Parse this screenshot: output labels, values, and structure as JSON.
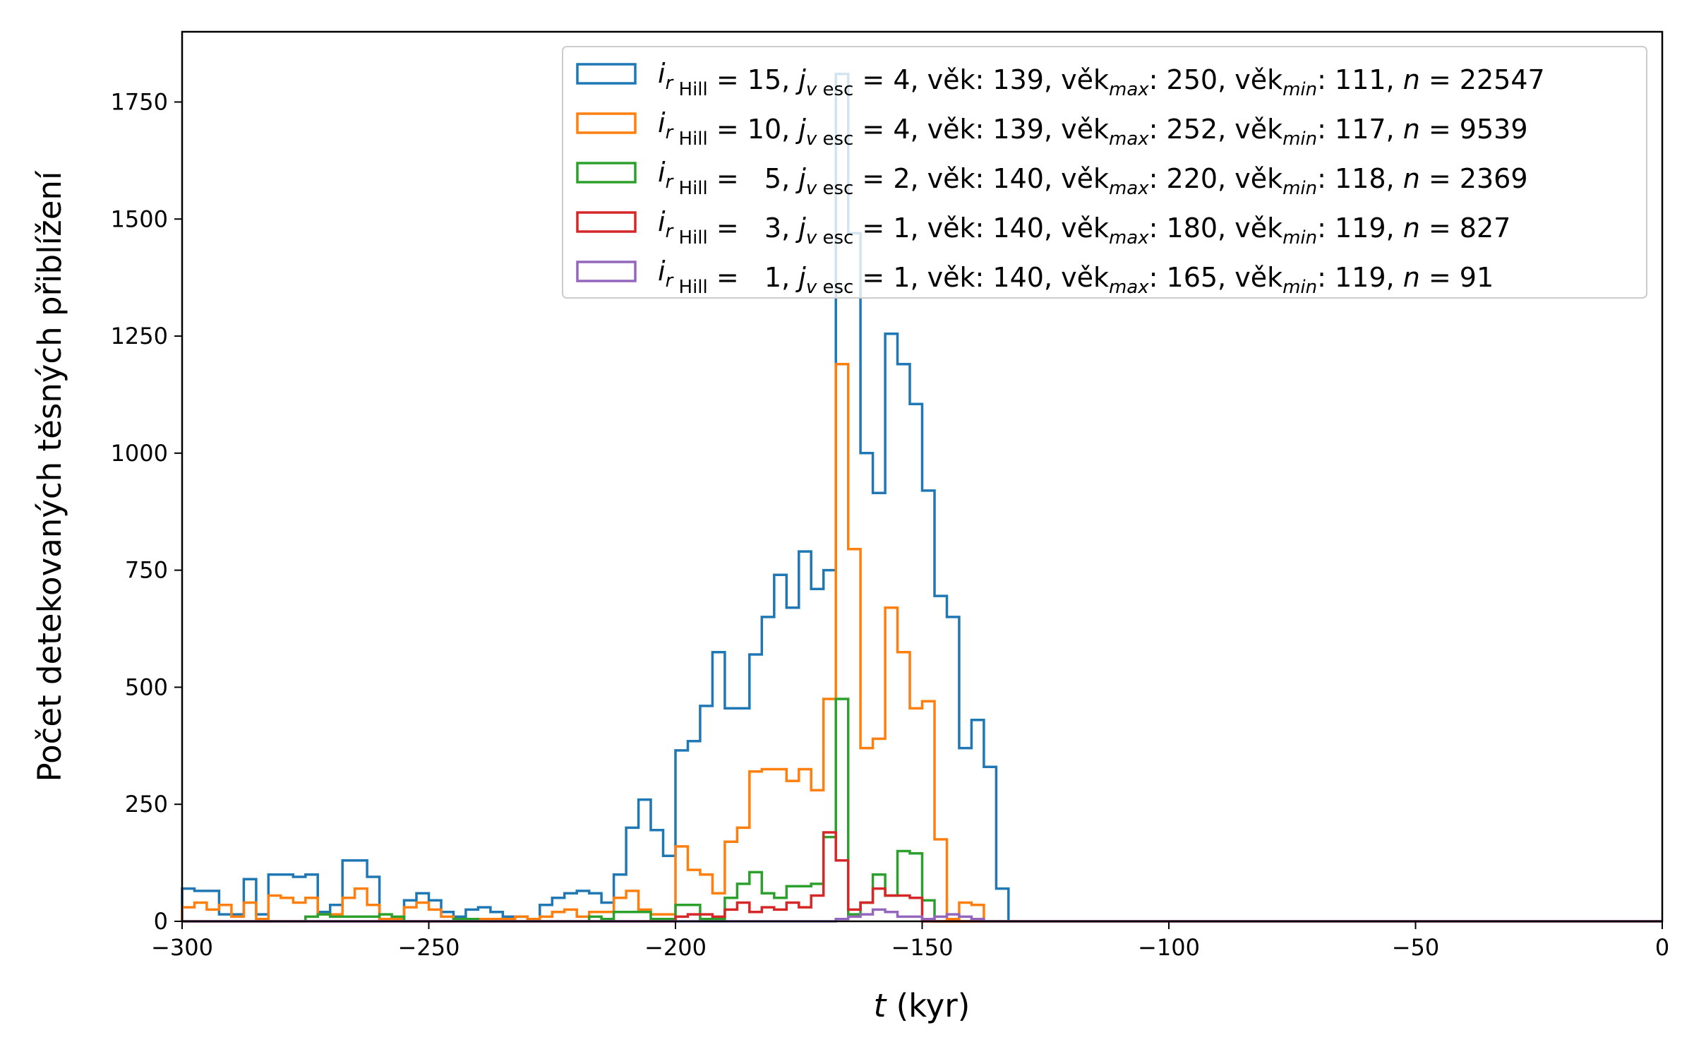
{
  "chart_data": {
    "type": "histogram",
    "xlabel_var": "t",
    "xlabel_unit": " (kyr)",
    "ylabel": "Počet detekovaných těsných přiblížení",
    "xlim": [
      -300,
      0
    ],
    "ylim": [
      0,
      1900
    ],
    "xticks": [
      -300,
      -250,
      -200,
      -150,
      -100,
      -50,
      0
    ],
    "xtick_labels": [
      "−300",
      "−250",
      "−200",
      "−150",
      "−100",
      "−50",
      "0"
    ],
    "yticks": [
      0,
      250,
      500,
      750,
      1000,
      1250,
      1500,
      1750
    ],
    "ytick_labels": [
      "0",
      "250",
      "500",
      "750",
      "1000",
      "1250",
      "1500",
      "1750"
    ],
    "bin_start": -300,
    "bin_width": 2.5,
    "legend_position": "upper right",
    "series": [
      {
        "name": "i_rHill = 15, j_vesc = 4, věk: 139, věk_max: 250, věk_min: 111, n = 22547",
        "legend": {
          "i": "15",
          "j": "4",
          "vek": "139",
          "vek_max": "250",
          "vek_min": "111",
          "n": "22547"
        },
        "color": "#1f77b4",
        "values": [
          70,
          65,
          65,
          15,
          15,
          90,
          15,
          100,
          100,
          95,
          100,
          20,
          35,
          130,
          130,
          95,
          5,
          5,
          45,
          60,
          45,
          20,
          10,
          25,
          30,
          20,
          10,
          10,
          5,
          35,
          50,
          60,
          65,
          60,
          40,
          100,
          200,
          260,
          195,
          140,
          365,
          385,
          460,
          575,
          455,
          455,
          570,
          650,
          740,
          670,
          790,
          710,
          750,
          1810,
          1470,
          1000,
          915,
          1255,
          1190,
          1105,
          920,
          695,
          650,
          370,
          430,
          330,
          70
        ]
      },
      {
        "name": "i_rHill = 10, j_vesc = 4, věk: 139, věk_max: 252, věk_min: 117, n = 9539",
        "legend": {
          "i": "10",
          "j": "4",
          "vek": "139",
          "vek_max": "252",
          "vek_min": "117",
          "n": "9539"
        },
        "color": "#ff7f0e",
        "values": [
          30,
          40,
          25,
          35,
          10,
          40,
          5,
          55,
          50,
          40,
          50,
          15,
          15,
          50,
          70,
          35,
          5,
          5,
          30,
          40,
          25,
          10,
          5,
          5,
          5,
          5,
          5,
          10,
          5,
          10,
          20,
          25,
          10,
          20,
          20,
          50,
          65,
          25,
          15,
          15,
          160,
          110,
          100,
          60,
          170,
          200,
          320,
          325,
          325,
          300,
          325,
          280,
          475,
          1190,
          795,
          370,
          390,
          670,
          575,
          455,
          470,
          175,
          5,
          40,
          35
        ]
      },
      {
        "name": "i_rHill =  5, j_vesc = 2, věk: 140, věk_max: 220, věk_min: 118, n = 2369",
        "legend": {
          "i": "5",
          "j": "2",
          "vek": "140",
          "vek_max": "220",
          "vek_min": "118",
          "n": "2369"
        },
        "color": "#2ca02c",
        "values": [
          0,
          0,
          0,
          0,
          0,
          0,
          0,
          0,
          0,
          0,
          10,
          15,
          10,
          10,
          10,
          10,
          15,
          10,
          0,
          0,
          0,
          0,
          5,
          5,
          0,
          0,
          0,
          0,
          0,
          0,
          0,
          0,
          0,
          10,
          5,
          20,
          20,
          20,
          5,
          5,
          35,
          35,
          5,
          5,
          50,
          80,
          105,
          60,
          50,
          75,
          75,
          80,
          180,
          475,
          15,
          40,
          100,
          55,
          150,
          145,
          45
        ]
      },
      {
        "name": "i_rHill =  3, j_vesc = 1, věk: 140, věk_max: 180, věk_min: 119, n = 827",
        "legend": {
          "i": "3",
          "j": "1",
          "vek": "140",
          "vek_max": "180",
          "vek_min": "119",
          "n": "827"
        },
        "color": "#d62728",
        "values": [
          0,
          0,
          0,
          0,
          0,
          0,
          0,
          0,
          0,
          0,
          0,
          0,
          0,
          0,
          0,
          0,
          0,
          0,
          0,
          0,
          0,
          0,
          0,
          0,
          0,
          0,
          0,
          0,
          0,
          0,
          0,
          0,
          0,
          0,
          0,
          0,
          0,
          0,
          0,
          0,
          10,
          15,
          15,
          10,
          25,
          40,
          20,
          30,
          25,
          40,
          30,
          55,
          190,
          130,
          25,
          40,
          70,
          55,
          55,
          50,
          0
        ]
      },
      {
        "name": "i_rHill =  1, j_vesc = 1, věk: 140, věk_max: 165, věk_min: 119, n = 91",
        "legend": {
          "i": "1",
          "j": "1",
          "vek": "140",
          "vek_max": "165",
          "vek_min": "119",
          "n": "91"
        },
        "color": "#9467bd",
        "values": [
          0,
          0,
          0,
          0,
          0,
          0,
          0,
          0,
          0,
          0,
          0,
          0,
          0,
          0,
          0,
          0,
          0,
          0,
          0,
          0,
          0,
          0,
          0,
          0,
          0,
          0,
          0,
          0,
          0,
          0,
          0,
          0,
          0,
          0,
          0,
          0,
          0,
          0,
          0,
          0,
          0,
          0,
          0,
          0,
          0,
          0,
          0,
          0,
          0,
          0,
          0,
          0,
          0,
          5,
          10,
          15,
          25,
          20,
          10,
          10,
          5,
          10,
          15,
          10,
          5
        ]
      }
    ]
  }
}
